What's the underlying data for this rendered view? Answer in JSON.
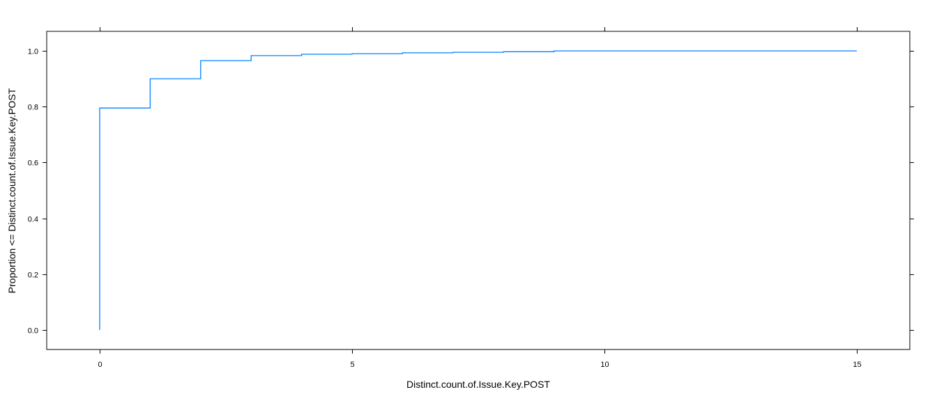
{
  "chart_data": {
    "type": "line",
    "subtype": "ecdf-step",
    "title": "",
    "xlabel": "Distinct.count.of.Issue.Key.POST",
    "ylabel": "Proportion <= Distinct.count.of.Issue.Key.POST",
    "xlim": [
      -1.05,
      16.05
    ],
    "ylim": [
      -0.07,
      1.07
    ],
    "x_ticks": [
      0,
      5,
      10,
      15
    ],
    "x_tick_labels": [
      "0",
      "5",
      "10",
      "15"
    ],
    "y_ticks": [
      0.0,
      0.2,
      0.4,
      0.6,
      0.8,
      1.0
    ],
    "y_tick_labels": [
      "0.0",
      "0.2",
      "0.4",
      "0.6",
      "0.8",
      "1.0"
    ],
    "grid": false,
    "legend": "none",
    "series": [
      {
        "color": "#0080ff",
        "x": [
          0,
          0,
          1,
          2,
          3,
          4,
          5,
          6,
          7,
          8,
          9,
          15
        ],
        "y": [
          0.0,
          0.795,
          0.9,
          0.965,
          0.983,
          0.988,
          0.99,
          0.993,
          0.995,
          0.997,
          1.0,
          1.0
        ]
      }
    ]
  }
}
